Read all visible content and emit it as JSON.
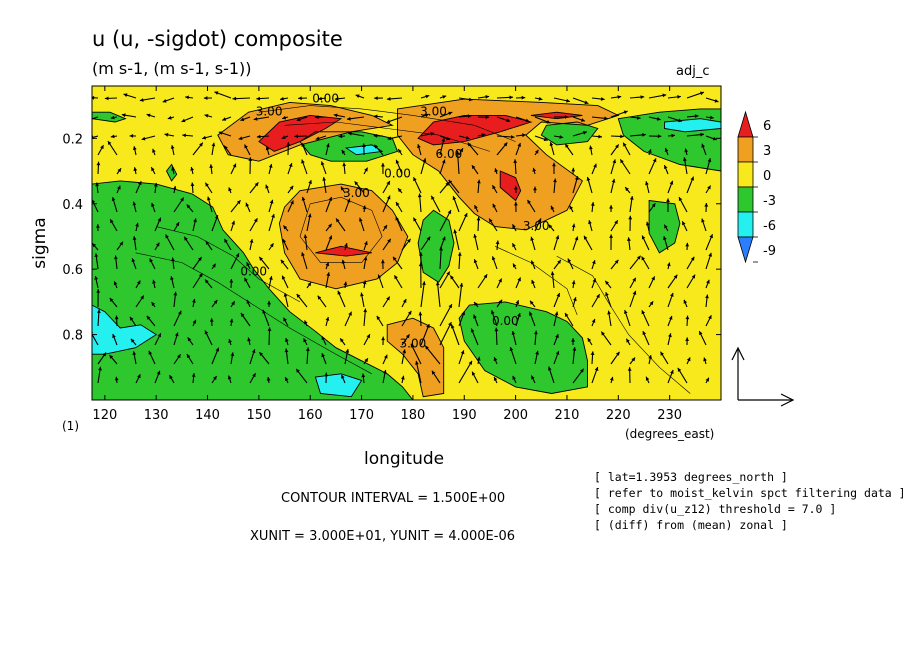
{
  "chart_data": {
    "type": "heatmap",
    "title": "u (u, -sigdot) composite",
    "subtitle": "(m s-1, (m s-1, s-1))",
    "dataset_tag": "adj_c",
    "xlabel": "longitude",
    "x_units": "(degrees_east)",
    "ylabel": "sigma",
    "ylabel_note": "(1)",
    "xlim": [
      117.5,
      240
    ],
    "ylim": [
      1.0,
      0.04
    ],
    "x_ticks": [
      120,
      130,
      140,
      150,
      160,
      170,
      180,
      190,
      200,
      210,
      220,
      230
    ],
    "y_ticks": [
      0.2,
      0.4,
      0.6,
      0.8
    ],
    "y_tick_labels": [
      "0.2",
      "0.4",
      "0.6",
      "0.8"
    ],
    "colorbar": {
      "levels": [
        "6",
        "3",
        "0",
        "-3",
        "-6",
        "-9"
      ],
      "colors": [
        "#e81e1e",
        "#f0a020",
        "#f7e91b",
        "#2ec82e",
        "#25f0f0",
        "#2b7fff"
      ]
    },
    "contour_labels": [
      {
        "text": "0.00",
        "lon": 163,
        "sigma": 0.09
      },
      {
        "text": "3.00",
        "lon": 152,
        "sigma": 0.13
      },
      {
        "text": "3.00",
        "lon": 184,
        "sigma": 0.13
      },
      {
        "text": "6.00",
        "lon": 187,
        "sigma": 0.26
      },
      {
        "text": "0.00",
        "lon": 177,
        "sigma": 0.32
      },
      {
        "text": "3.00",
        "lon": 169,
        "sigma": 0.38
      },
      {
        "text": "3.00",
        "lon": 204,
        "sigma": 0.48
      },
      {
        "text": "0.00",
        "lon": 149,
        "sigma": 0.62
      },
      {
        "text": "0.00",
        "lon": 198,
        "sigma": 0.77
      },
      {
        "text": "3.00",
        "lon": 180,
        "sigma": 0.84
      }
    ],
    "regions": [
      {
        "level": "0",
        "color": "#f7e91b",
        "points": [
          [
            117.5,
            0.04
          ],
          [
            240,
            0.04
          ],
          [
            240,
            1.0
          ],
          [
            117.5,
            1.0
          ]
        ]
      },
      {
        "level": "-3",
        "color": "#2ec82e",
        "points": [
          [
            117.5,
            0.34
          ],
          [
            123,
            0.33
          ],
          [
            130,
            0.34
          ],
          [
            137,
            0.37
          ],
          [
            141,
            0.41
          ],
          [
            143,
            0.48
          ],
          [
            147,
            0.55
          ],
          [
            149,
            0.6
          ],
          [
            152,
            0.66
          ],
          [
            156,
            0.73
          ],
          [
            161,
            0.79
          ],
          [
            165,
            0.84
          ],
          [
            170,
            0.88
          ],
          [
            175,
            0.92
          ],
          [
            178,
            0.96
          ],
          [
            180,
            1.0
          ],
          [
            117.5,
            1.0
          ]
        ]
      },
      {
        "level": "-6",
        "color": "#25f0f0",
        "points": [
          [
            117.5,
            0.71
          ],
          [
            120,
            0.73
          ],
          [
            123,
            0.78
          ],
          [
            127,
            0.77
          ],
          [
            130,
            0.8
          ],
          [
            126,
            0.84
          ],
          [
            120,
            0.86
          ],
          [
            117.5,
            0.86
          ]
        ]
      },
      {
        "level": "-6",
        "color": "#25f0f0",
        "points": [
          [
            161,
            0.93
          ],
          [
            166,
            0.92
          ],
          [
            170,
            0.94
          ],
          [
            168,
            0.99
          ],
          [
            162,
            0.98
          ]
        ]
      },
      {
        "level": "-3",
        "color": "#2ec82e",
        "points": [
          [
            117.5,
            0.12
          ],
          [
            121,
            0.12
          ],
          [
            124,
            0.14
          ],
          [
            122,
            0.15
          ],
          [
            117.5,
            0.14
          ]
        ]
      },
      {
        "level": "-3",
        "color": "#2ec82e",
        "points": [
          [
            191,
            0.71
          ],
          [
            198,
            0.7
          ],
          [
            206,
            0.73
          ],
          [
            210,
            0.76
          ],
          [
            213,
            0.81
          ],
          [
            214,
            0.88
          ],
          [
            214,
            0.96
          ],
          [
            207,
            0.98
          ],
          [
            200,
            0.96
          ],
          [
            194,
            0.91
          ],
          [
            190,
            0.82
          ],
          [
            189,
            0.75
          ]
        ]
      },
      {
        "level": "-3",
        "color": "#2ec82e",
        "points": [
          [
            161,
            0.18
          ],
          [
            170,
            0.18
          ],
          [
            176,
            0.2
          ],
          [
            177,
            0.24
          ],
          [
            171,
            0.27
          ],
          [
            164,
            0.27
          ],
          [
            160,
            0.25
          ],
          [
            158,
            0.21
          ]
        ]
      },
      {
        "level": "-3",
        "color": "#2ec82e",
        "points": [
          [
            184,
            0.42
          ],
          [
            187,
            0.45
          ],
          [
            188,
            0.52
          ],
          [
            187,
            0.59
          ],
          [
            185,
            0.64
          ],
          [
            182,
            0.61
          ],
          [
            181,
            0.52
          ],
          [
            182,
            0.45
          ]
        ]
      },
      {
        "level": "-3",
        "color": "#2ec82e",
        "points": [
          [
            226,
            0.39
          ],
          [
            231,
            0.4
          ],
          [
            232,
            0.46
          ],
          [
            231,
            0.52
          ],
          [
            228,
            0.55
          ],
          [
            226,
            0.49
          ]
        ]
      },
      {
        "level": "-3",
        "color": "#2ec82e",
        "points": [
          [
            132,
            0.3
          ],
          [
            133,
            0.28
          ],
          [
            134,
            0.31
          ],
          [
            133,
            0.33
          ]
        ]
      },
      {
        "level": "-3",
        "color": "#2ec82e",
        "points": [
          [
            220,
            0.14
          ],
          [
            228,
            0.12
          ],
          [
            236,
            0.11
          ],
          [
            240,
            0.11
          ],
          [
            240,
            0.3
          ],
          [
            232,
            0.28
          ],
          [
            225,
            0.24
          ],
          [
            221,
            0.19
          ]
        ]
      },
      {
        "level": "-6",
        "color": "#25f0f0",
        "points": [
          [
            229,
            0.15
          ],
          [
            236,
            0.14
          ],
          [
            240,
            0.15
          ],
          [
            240,
            0.17
          ],
          [
            233,
            0.18
          ],
          [
            229,
            0.17
          ]
        ]
      },
      {
        "level": "-3",
        "color": "#2ec82e",
        "points": [
          [
            206,
            0.16
          ],
          [
            212,
            0.15
          ],
          [
            216,
            0.17
          ],
          [
            214,
            0.21
          ],
          [
            208,
            0.22
          ],
          [
            205,
            0.19
          ]
        ]
      },
      {
        "level": "-6",
        "color": "#25f0f0",
        "points": [
          [
            167,
            0.23
          ],
          [
            172,
            0.22
          ],
          [
            174,
            0.24
          ],
          [
            169,
            0.25
          ]
        ]
      },
      {
        "level": "3",
        "color": "#f0a020",
        "points": [
          [
            142,
            0.19
          ],
          [
            148,
            0.12
          ],
          [
            156,
            0.09
          ],
          [
            164,
            0.1
          ],
          [
            172,
            0.13
          ],
          [
            176,
            0.16
          ],
          [
            168,
            0.18
          ],
          [
            158,
            0.22
          ],
          [
            150,
            0.27
          ],
          [
            144,
            0.25
          ]
        ]
      },
      {
        "level": "3",
        "color": "#f0a020",
        "points": [
          [
            177,
            0.11
          ],
          [
            190,
            0.08
          ],
          [
            205,
            0.09
          ],
          [
            216,
            0.1
          ],
          [
            220,
            0.13
          ],
          [
            214,
            0.16
          ],
          [
            205,
            0.15
          ],
          [
            202,
            0.19
          ],
          [
            206,
            0.25
          ],
          [
            213,
            0.33
          ],
          [
            210,
            0.42
          ],
          [
            202,
            0.48
          ],
          [
            196,
            0.47
          ],
          [
            192,
            0.43
          ],
          [
            189,
            0.38
          ],
          [
            185,
            0.3
          ],
          [
            180,
            0.25
          ],
          [
            177,
            0.19
          ]
        ]
      },
      {
        "level": "3",
        "color": "#f0a020",
        "points": [
          [
            155,
            0.41
          ],
          [
            158,
            0.36
          ],
          [
            166,
            0.34
          ],
          [
            172,
            0.36
          ],
          [
            176,
            0.42
          ],
          [
            179,
            0.5
          ],
          [
            177,
            0.58
          ],
          [
            173,
            0.63
          ],
          [
            165,
            0.66
          ],
          [
            158,
            0.63
          ],
          [
            155,
            0.55
          ],
          [
            154,
            0.46
          ]
        ]
      },
      {
        "level": "3",
        "color": "#f0a020",
        "points": [
          [
            175,
            0.77
          ],
          [
            180,
            0.75
          ],
          [
            184,
            0.78
          ],
          [
            186,
            0.84
          ],
          [
            186,
            0.92
          ],
          [
            186,
            0.98
          ],
          [
            182,
            0.99
          ],
          [
            181,
            0.92
          ],
          [
            178,
            0.86
          ],
          [
            175,
            0.82
          ]
        ]
      },
      {
        "level": "6",
        "color": "#e81e1e",
        "points": [
          [
            150,
            0.21
          ],
          [
            154,
            0.15
          ],
          [
            160,
            0.13
          ],
          [
            166,
            0.14
          ],
          [
            163,
            0.17
          ],
          [
            158,
            0.21
          ],
          [
            153,
            0.24
          ]
        ]
      },
      {
        "level": "6",
        "color": "#e81e1e",
        "points": [
          [
            181,
            0.2
          ],
          [
            184,
            0.15
          ],
          [
            190,
            0.13
          ],
          [
            198,
            0.13
          ],
          [
            203,
            0.15
          ],
          [
            197,
            0.18
          ],
          [
            190,
            0.21
          ],
          [
            184,
            0.22
          ]
        ]
      },
      {
        "level": "6",
        "color": "#e81e1e",
        "points": [
          [
            197,
            0.3
          ],
          [
            200,
            0.32
          ],
          [
            201,
            0.36
          ],
          [
            200,
            0.39
          ],
          [
            197,
            0.35
          ]
        ]
      },
      {
        "level": "6",
        "color": "#e81e1e",
        "points": [
          [
            161,
            0.55
          ],
          [
            166,
            0.53
          ],
          [
            172,
            0.55
          ],
          [
            167,
            0.56
          ]
        ]
      },
      {
        "level": "6",
        "color": "#e81e1e",
        "points": [
          [
            203,
            0.13
          ],
          [
            208,
            0.12
          ],
          [
            213,
            0.13
          ],
          [
            208,
            0.14
          ]
        ]
      }
    ],
    "reference_arrow": {
      "x_unit": "3.000E+01",
      "y_unit": "4.000E-06"
    }
  },
  "footer": {
    "contour_interval": "CONTOUR INTERVAL = 1.500E+00",
    "units": "XUNIT = 3.000E+01, YUNIT = 4.000E-06",
    "notes": [
      "[ lat=1.3953 degrees_north ]",
      "[ refer to moist_kelvin spct filtering data ]",
      "[ comp div(u_z12) threshold = 7.0 ]",
      "[ (diff) from (mean) zonal ]"
    ]
  }
}
